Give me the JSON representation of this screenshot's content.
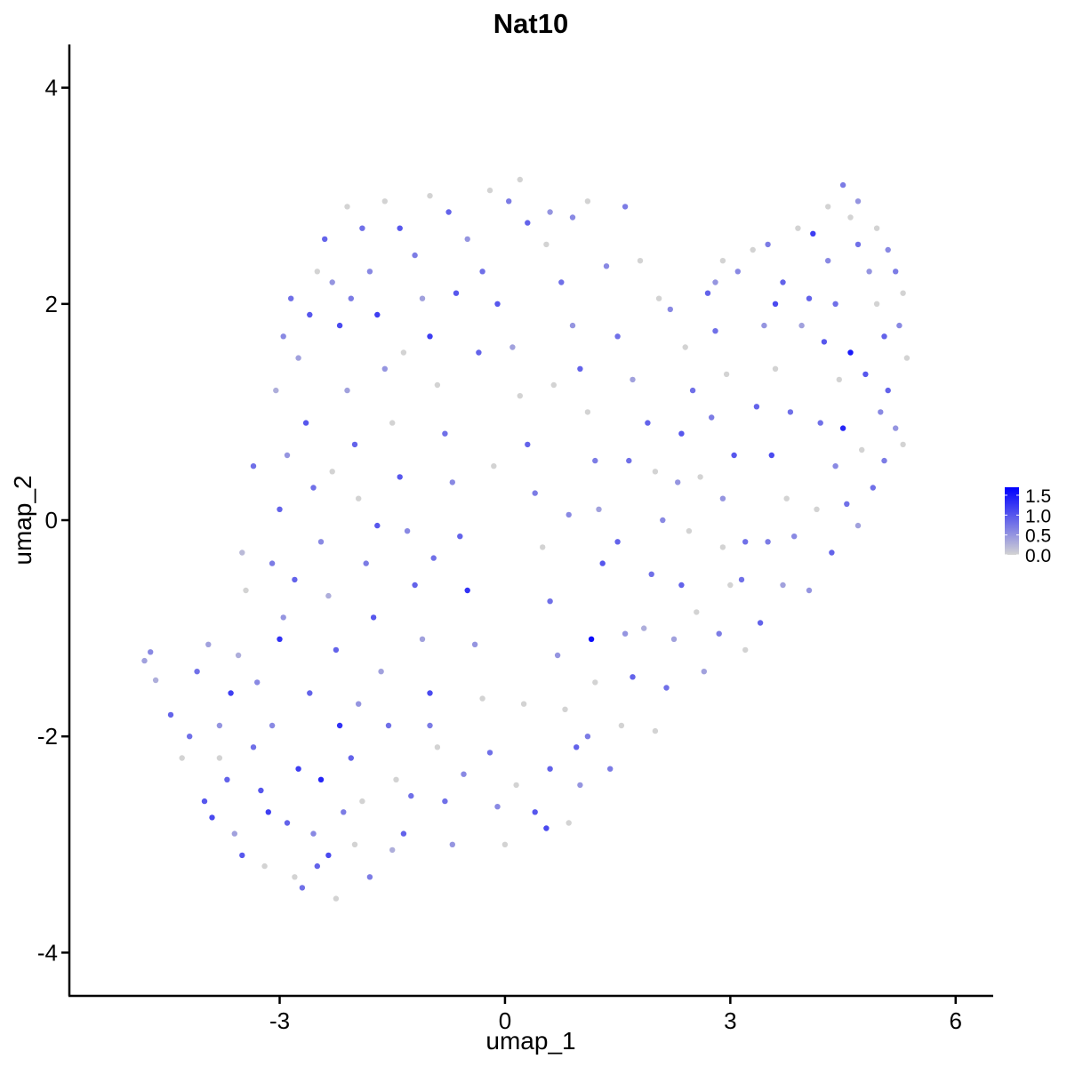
{
  "chart_data": {
    "type": "scatter",
    "title": "Nat10",
    "xlabel": "umap_1",
    "ylabel": "umap_2",
    "xlim": [
      -5.8,
      6.5
    ],
    "ylim": [
      -4.4,
      4.4
    ],
    "x_ticks": [
      -3,
      0,
      3,
      6
    ],
    "x_tick_labels": [
      "-3",
      "0",
      "3",
      "6"
    ],
    "y_ticks": [
      -4,
      -2,
      0,
      2,
      4
    ],
    "y_tick_labels": [
      "-4",
      "-2",
      "0",
      "2",
      "4"
    ],
    "grid": false,
    "colorbar": {
      "placement": "right",
      "min": 0,
      "max": 1.7,
      "ticks": [
        0.0,
        0.5,
        1.0,
        1.5
      ],
      "tick_labels": [
        "0.0",
        "0.5",
        "1.0",
        "1.5"
      ],
      "low_color": "#d3d3d3",
      "high_color": "#0000ff"
    },
    "columns": [
      "umap_1",
      "umap_2",
      "expression"
    ],
    "points": [
      [
        -4.8,
        -1.3,
        0.4
      ],
      [
        -4.72,
        -1.22,
        0.6
      ],
      [
        -4.65,
        -1.48,
        0.3
      ],
      [
        -4.45,
        -1.8,
        0.9
      ],
      [
        -4.3,
        -2.2,
        0.0
      ],
      [
        -4.1,
        -1.4,
        0.8
      ],
      [
        -4.0,
        -2.6,
        1.0
      ],
      [
        -3.9,
        -2.75,
        1.1
      ],
      [
        -3.8,
        -1.9,
        0.5
      ],
      [
        -3.7,
        -2.4,
        0.9
      ],
      [
        -3.6,
        -2.9,
        0.4
      ],
      [
        -3.5,
        -3.1,
        1.0
      ],
      [
        -3.65,
        -1.6,
        1.2
      ],
      [
        -3.55,
        -1.25,
        0.3
      ],
      [
        -3.45,
        -0.65,
        0.0
      ],
      [
        -3.5,
        -0.3,
        0.2
      ],
      [
        -3.35,
        -2.1,
        0.8
      ],
      [
        -3.25,
        -2.5,
        1.0
      ],
      [
        -3.2,
        -3.2,
        0.0
      ],
      [
        -3.1,
        -1.9,
        0.6
      ],
      [
        -3.0,
        -1.1,
        1.3
      ],
      [
        -2.95,
        -0.9,
        0.5
      ],
      [
        -2.9,
        -2.8,
        0.9
      ],
      [
        -2.8,
        -3.3,
        0.0
      ],
      [
        -2.7,
        -3.4,
        0.8
      ],
      [
        -2.75,
        -2.3,
        1.2
      ],
      [
        -2.6,
        -1.6,
        0.9
      ],
      [
        -2.55,
        -2.9,
        0.6
      ],
      [
        -2.45,
        -2.4,
        1.4
      ],
      [
        -2.35,
        -3.1,
        1.1
      ],
      [
        -2.25,
        -3.5,
        0.0
      ],
      [
        -2.15,
        -2.7,
        0.7
      ],
      [
        -2.05,
        -2.2,
        0.9
      ],
      [
        -1.95,
        -1.7,
        0.5
      ],
      [
        -1.9,
        -2.6,
        0.0
      ],
      [
        -1.8,
        -3.3,
        0.7
      ],
      [
        -3.1,
        -0.4,
        0.7
      ],
      [
        -3.0,
        0.1,
        0.9
      ],
      [
        -2.9,
        0.6,
        0.5
      ],
      [
        -3.05,
        1.2,
        0.3
      ],
      [
        -2.95,
        1.7,
        0.6
      ],
      [
        -2.85,
        2.05,
        0.8
      ],
      [
        -2.75,
        1.5,
        0.4
      ],
      [
        -2.65,
        0.9,
        1.0
      ],
      [
        -2.55,
        0.3,
        0.8
      ],
      [
        -2.45,
        -0.2,
        0.6
      ],
      [
        -2.35,
        -0.7,
        0.3
      ],
      [
        -2.25,
        -1.2,
        0.9
      ],
      [
        -2.6,
        1.9,
        1.0
      ],
      [
        -2.5,
        2.3,
        0.0
      ],
      [
        -2.4,
        2.6,
        0.9
      ],
      [
        -2.3,
        2.2,
        0.5
      ],
      [
        -2.2,
        1.8,
        1.1
      ],
      [
        -2.1,
        1.2,
        0.4
      ],
      [
        -2.0,
        0.7,
        0.9
      ],
      [
        -1.95,
        0.2,
        0.0
      ],
      [
        -1.85,
        -0.4,
        0.7
      ],
      [
        -1.75,
        -0.9,
        1.0
      ],
      [
        -1.65,
        -1.4,
        0.4
      ],
      [
        -1.55,
        -1.9,
        0.8
      ],
      [
        -1.45,
        -2.4,
        0.0
      ],
      [
        -1.35,
        -2.9,
        0.9
      ],
      [
        -1.5,
        -3.05,
        0.3
      ],
      [
        -2.1,
        2.9,
        0.0
      ],
      [
        -1.9,
        2.7,
        0.8
      ],
      [
        -1.8,
        2.3,
        0.6
      ],
      [
        -1.7,
        1.9,
        1.2
      ],
      [
        -1.6,
        1.4,
        0.5
      ],
      [
        -1.5,
        0.9,
        0.0
      ],
      [
        -1.4,
        0.4,
        1.0
      ],
      [
        -1.3,
        -0.1,
        0.6
      ],
      [
        -1.2,
        -0.6,
        0.9
      ],
      [
        -1.1,
        -1.1,
        0.4
      ],
      [
        -1.0,
        -1.6,
        1.1
      ],
      [
        -0.9,
        -2.1,
        0.0
      ],
      [
        -0.8,
        -2.6,
        0.8
      ],
      [
        -0.7,
        -3.0,
        0.5
      ],
      [
        -1.6,
        2.95,
        0.0
      ],
      [
        -1.4,
        2.7,
        1.0
      ],
      [
        -1.2,
        2.45,
        0.7
      ],
      [
        -1.1,
        2.05,
        0.4
      ],
      [
        -1.0,
        1.7,
        1.2
      ],
      [
        -0.9,
        1.25,
        0.0
      ],
      [
        -0.8,
        0.8,
        0.8
      ],
      [
        -0.7,
        0.35,
        0.6
      ],
      [
        -0.6,
        -0.15,
        0.9
      ],
      [
        -0.5,
        -0.65,
        1.3
      ],
      [
        -0.4,
        -1.15,
        0.5
      ],
      [
        -0.3,
        -1.65,
        0.0
      ],
      [
        -0.2,
        -2.15,
        0.8
      ],
      [
        -0.1,
        -2.65,
        0.6
      ],
      [
        0.0,
        -3.0,
        0.0
      ],
      [
        -1.0,
        3.0,
        0.0
      ],
      [
        -0.75,
        2.85,
        0.9
      ],
      [
        -0.5,
        2.6,
        0.5
      ],
      [
        -0.3,
        2.3,
        0.8
      ],
      [
        -0.1,
        2.0,
        1.0
      ],
      [
        0.1,
        1.6,
        0.4
      ],
      [
        0.2,
        1.15,
        0.0
      ],
      [
        0.3,
        0.7,
        0.9
      ],
      [
        0.4,
        0.25,
        0.7
      ],
      [
        0.5,
        -0.25,
        0.0
      ],
      [
        0.6,
        -0.75,
        0.8
      ],
      [
        0.7,
        -1.25,
        0.5
      ],
      [
        0.8,
        -1.75,
        0.0
      ],
      [
        0.6,
        -2.3,
        0.9
      ],
      [
        0.55,
        -2.85,
        1.1
      ],
      [
        0.4,
        -2.7,
        1.0
      ],
      [
        -0.2,
        3.05,
        0.0
      ],
      [
        0.05,
        2.95,
        0.7
      ],
      [
        0.3,
        2.75,
        0.9
      ],
      [
        0.55,
        2.55,
        0.0
      ],
      [
        0.75,
        2.2,
        0.8
      ],
      [
        0.9,
        1.8,
        0.5
      ],
      [
        1.0,
        1.4,
        0.9
      ],
      [
        1.1,
        1.0,
        0.0
      ],
      [
        1.2,
        0.55,
        0.7
      ],
      [
        1.25,
        0.1,
        0.4
      ],
      [
        1.3,
        -0.4,
        1.0
      ],
      [
        1.15,
        -1.1,
        1.6
      ],
      [
        1.2,
        -1.5,
        0.0
      ],
      [
        1.1,
        -2.0,
        0.7
      ],
      [
        1.0,
        -2.45,
        0.5
      ],
      [
        0.85,
        -2.8,
        0.0
      ],
      [
        0.2,
        3.15,
        0.0
      ],
      [
        0.6,
        2.85,
        0.5
      ],
      [
        0.9,
        2.8,
        0.6
      ],
      [
        1.1,
        2.95,
        0.0
      ],
      [
        1.6,
        2.9,
        0.7
      ],
      [
        1.8,
        2.4,
        0.0
      ],
      [
        1.5,
        1.7,
        0.8
      ],
      [
        1.7,
        1.3,
        0.4
      ],
      [
        1.9,
        0.9,
        0.9
      ],
      [
        2.0,
        0.45,
        0.0
      ],
      [
        2.1,
        0.0,
        0.6
      ],
      [
        1.95,
        -0.5,
        0.8
      ],
      [
        1.85,
        -1.0,
        0.3
      ],
      [
        1.7,
        -1.45,
        0.9
      ],
      [
        1.55,
        -1.9,
        0.0
      ],
      [
        1.4,
        -2.3,
        0.7
      ],
      [
        2.2,
        1.95,
        0.6
      ],
      [
        2.4,
        1.6,
        0.0
      ],
      [
        2.5,
        1.2,
        0.8
      ],
      [
        2.35,
        0.8,
        1.0
      ],
      [
        2.3,
        0.35,
        0.5
      ],
      [
        2.45,
        -0.1,
        0.0
      ],
      [
        2.35,
        -0.6,
        0.9
      ],
      [
        2.25,
        -1.1,
        0.4
      ],
      [
        2.15,
        -1.55,
        0.8
      ],
      [
        2.0,
        -1.95,
        0.0
      ],
      [
        2.7,
        2.1,
        0.9
      ],
      [
        2.9,
        2.4,
        0.0
      ],
      [
        3.1,
        2.3,
        0.6
      ],
      [
        2.8,
        1.75,
        0.8
      ],
      [
        2.95,
        1.35,
        0.0
      ],
      [
        2.75,
        0.95,
        0.7
      ],
      [
        3.05,
        0.6,
        1.0
      ],
      [
        2.9,
        0.2,
        0.5
      ],
      [
        3.2,
        -0.2,
        0.8
      ],
      [
        3.0,
        -0.6,
        0.0
      ],
      [
        2.85,
        -1.05,
        0.7
      ],
      [
        2.65,
        -1.4,
        0.4
      ],
      [
        3.3,
        2.5,
        0.0
      ],
      [
        3.5,
        2.55,
        0.7
      ],
      [
        3.7,
        2.2,
        0.9
      ],
      [
        3.45,
        1.8,
        0.5
      ],
      [
        3.6,
        1.4,
        0.0
      ],
      [
        3.8,
        1.0,
        0.8
      ],
      [
        3.55,
        0.6,
        1.1
      ],
      [
        3.75,
        0.2,
        0.0
      ],
      [
        3.5,
        -0.2,
        0.7
      ],
      [
        3.7,
        -0.6,
        0.4
      ],
      [
        3.4,
        -0.95,
        0.9
      ],
      [
        3.2,
        -1.2,
        0.0
      ],
      [
        3.9,
        2.7,
        0.0
      ],
      [
        4.1,
        2.65,
        1.2
      ],
      [
        4.3,
        2.4,
        0.6
      ],
      [
        4.05,
        2.05,
        0.9
      ],
      [
        4.25,
        1.65,
        1.0
      ],
      [
        4.45,
        1.3,
        0.0
      ],
      [
        4.2,
        0.9,
        0.8
      ],
      [
        4.4,
        0.5,
        0.6
      ],
      [
        4.15,
        0.1,
        0.0
      ],
      [
        4.35,
        -0.3,
        0.9
      ],
      [
        4.05,
        -0.65,
        0.5
      ],
      [
        4.5,
        3.1,
        0.7
      ],
      [
        4.6,
        2.8,
        0.0
      ],
      [
        4.7,
        2.55,
        0.8
      ],
      [
        4.85,
        2.3,
        0.5
      ],
      [
        4.95,
        2.0,
        0.0
      ],
      [
        5.05,
        1.7,
        0.9
      ],
      [
        4.8,
        1.35,
        1.0
      ],
      [
        5.0,
        1.0,
        0.6
      ],
      [
        4.75,
        0.65,
        0.0
      ],
      [
        4.9,
        0.3,
        0.8
      ],
      [
        4.7,
        -0.05,
        0.4
      ],
      [
        4.5,
        0.85,
        1.4
      ],
      [
        5.2,
        2.3,
        0.7
      ],
      [
        5.3,
        2.1,
        0.0
      ],
      [
        5.25,
        1.8,
        0.6
      ],
      [
        5.35,
        1.5,
        0.0
      ],
      [
        5.1,
        1.2,
        0.9
      ],
      [
        5.2,
        0.85,
        0.5
      ],
      [
        5.05,
        0.55,
        0.7
      ],
      [
        5.3,
        0.7,
        0.0
      ],
      [
        5.1,
        2.5,
        0.6
      ],
      [
        4.95,
        2.7,
        0.0
      ],
      [
        4.7,
        2.95,
        0.5
      ],
      [
        4.4,
        2.0,
        0.8
      ],
      [
        4.6,
        1.55,
        1.5
      ],
      [
        3.95,
        1.8,
        0.4
      ],
      [
        3.35,
        1.05,
        0.9
      ],
      [
        2.6,
        0.4,
        0.0
      ],
      [
        1.65,
        0.55,
        0.8
      ],
      [
        0.85,
        0.05,
        0.6
      ],
      [
        -0.15,
        0.5,
        0.0
      ],
      [
        -0.95,
        -0.35,
        0.8
      ],
      [
        -1.7,
        -0.05,
        1.0
      ],
      [
        -2.3,
        0.45,
        0.0
      ],
      [
        -2.8,
        -0.55,
        0.9
      ],
      [
        -3.3,
        -1.5,
        0.6
      ],
      [
        -3.8,
        -2.2,
        0.0
      ],
      [
        -4.2,
        -2.0,
        0.8
      ],
      [
        -3.95,
        -1.15,
        0.4
      ],
      [
        -3.15,
        -2.7,
        1.2
      ],
      [
        -2.5,
        -3.2,
        0.9
      ],
      [
        -2.0,
        -3.0,
        0.0
      ],
      [
        -1.25,
        -2.55,
        0.8
      ],
      [
        -0.55,
        -2.35,
        0.6
      ],
      [
        0.15,
        -2.45,
        0.0
      ],
      [
        0.95,
        -2.1,
        0.9
      ],
      [
        1.6,
        -1.05,
        0.5
      ],
      [
        2.55,
        -0.85,
        0.0
      ],
      [
        3.15,
        -0.55,
        0.8
      ],
      [
        -0.65,
        2.1,
        1.0
      ],
      [
        -1.35,
        1.55,
        0.0
      ],
      [
        -2.05,
        2.05,
        0.7
      ],
      [
        -0.35,
        1.55,
        0.9
      ],
      [
        0.65,
        1.25,
        0.0
      ],
      [
        1.35,
        2.35,
        0.6
      ],
      [
        2.05,
        2.05,
        0.0
      ],
      [
        2.8,
        2.2,
        0.5
      ],
      [
        3.6,
        2.0,
        1.1
      ],
      [
        4.3,
        2.9,
        0.0
      ],
      [
        -3.35,
        0.5,
        0.8
      ],
      [
        -2.2,
        -1.9,
        1.3
      ],
      [
        -1.0,
        -1.9,
        0.7
      ],
      [
        0.25,
        -1.7,
        0.0
      ],
      [
        1.5,
        -0.2,
        0.9
      ],
      [
        2.9,
        -0.25,
        0.0
      ],
      [
        3.85,
        -0.15,
        0.6
      ],
      [
        4.55,
        0.15,
        0.8
      ]
    ]
  }
}
